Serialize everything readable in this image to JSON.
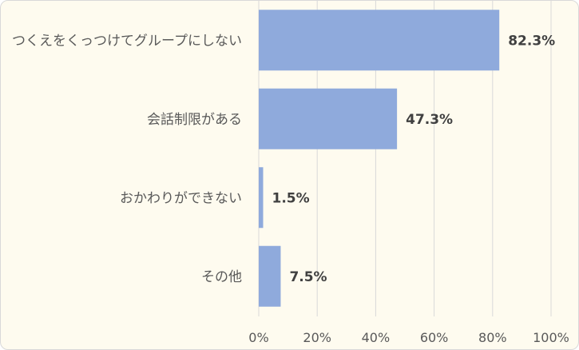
{
  "chart_data": {
    "type": "bar",
    "orientation": "horizontal",
    "categories": [
      "つくえをくっつけてグループにしない",
      "会話制限がある",
      "おかわりができない",
      "その他"
    ],
    "values": [
      82.3,
      47.3,
      1.5,
      7.5
    ],
    "value_labels": [
      "82.3%",
      "47.3%",
      "1.5%",
      "7.5%"
    ],
    "xlim": [
      0,
      100
    ],
    "x_ticks": [
      0,
      20,
      40,
      60,
      80,
      100
    ],
    "x_tick_labels": [
      "0%",
      "20%",
      "40%",
      "60%",
      "80%",
      "100%"
    ],
    "grid": true,
    "bar_color": "#8faadc",
    "gridline_color": "#d9d9d9",
    "background_color": "#fefbef"
  }
}
